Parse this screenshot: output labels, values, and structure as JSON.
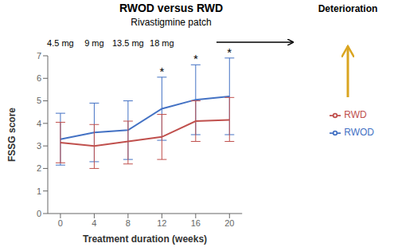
{
  "chart_data": {
    "type": "line",
    "title": "RWOD versus RWD",
    "subtitle": "Rivastigmine patch",
    "x_label": "Treatment duration (weeks)",
    "y_label": "FSSG score",
    "x": [
      0,
      4,
      8,
      12,
      16,
      20
    ],
    "series": [
      {
        "name": "RWOD",
        "color": "#4472C4",
        "values": [
          3.3,
          3.6,
          3.7,
          4.65,
          5.05,
          5.2
        ],
        "yerr_lower": [
          1.15,
          1.3,
          1.3,
          1.4,
          1.55,
          1.7
        ],
        "yerr_upper": [
          1.15,
          1.3,
          1.3,
          1.4,
          1.55,
          1.7
        ]
      },
      {
        "name": "RWD",
        "color": "#C0504D",
        "values": [
          3.15,
          3.0,
          3.2,
          3.4,
          4.1,
          4.15
        ],
        "yerr_lower": [
          0.9,
          1.0,
          1.0,
          1.0,
          0.9,
          0.95
        ],
        "yerr_upper": [
          0.9,
          0.95,
          0.9,
          1.0,
          0.9,
          1.0
        ]
      }
    ],
    "xlim": [
      -1.5,
      21.5
    ],
    "xticks": [
      0,
      4,
      8,
      12,
      16,
      20
    ],
    "ylim": [
      0,
      7
    ],
    "yticks": [
      0,
      1,
      2,
      3,
      4,
      5,
      6,
      7
    ],
    "grid": false,
    "legend": "right",
    "annotations": [
      {
        "text": "4.5 mg",
        "x": 0
      },
      {
        "text": "9 mg",
        "x": 4
      },
      {
        "text": "13.5 mg",
        "x": 8
      },
      {
        "text": "18 mg",
        "x": 12
      },
      {
        "text": "*",
        "x": 12,
        "series": "RWOD"
      },
      {
        "text": "*",
        "x": 16,
        "series": "RWOD"
      },
      {
        "text": "*",
        "x": 20,
        "series": "RWOD"
      },
      {
        "text": "Deterioration",
        "color": "#DAA520"
      }
    ]
  }
}
